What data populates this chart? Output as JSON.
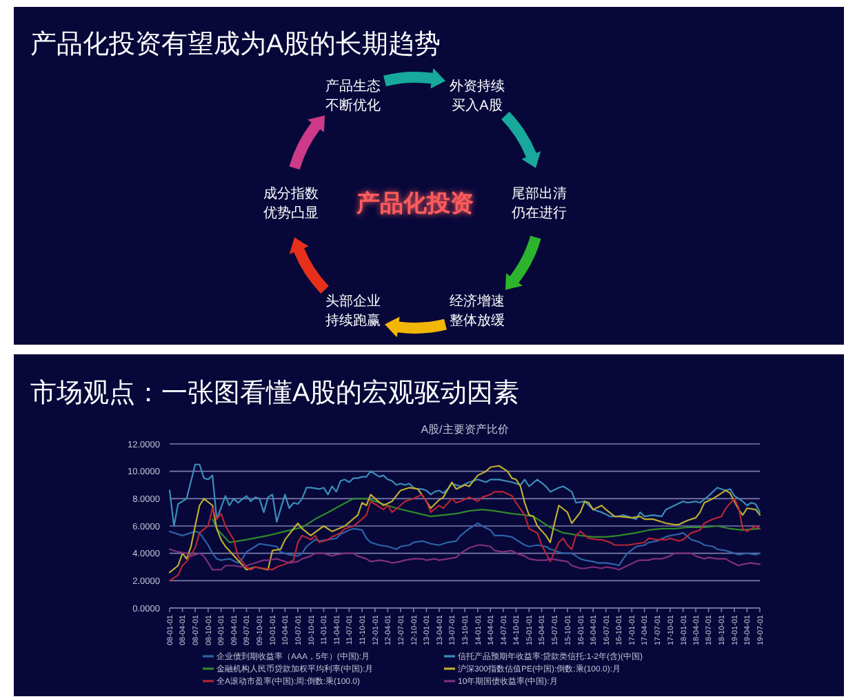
{
  "chart_data": [
    {
      "type": "other",
      "title": "产品化投资有望成为A股的长期趋势",
      "annotations": [
        "产品化投资",
        "产品生态不断优化",
        "外资持续买入A股",
        "尾部出清仍在进行",
        "经济增速整体放缓",
        "头部企业持续跑赢",
        "成分指数优势凸显"
      ]
    },
    {
      "type": "line",
      "title": "市场观点：一张图看懂A股的宏观驱动因素",
      "subtitle": "A股/主要资产比价",
      "ylim": [
        0,
        12
      ],
      "yticks": [
        {
          "value": 0,
          "label": "0.0000"
        },
        {
          "value": 2,
          "label": "2.0000"
        },
        {
          "value": 4,
          "label": "4.0000"
        },
        {
          "value": 6,
          "label": "6.0000"
        },
        {
          "value": 8,
          "label": "8.0000"
        },
        {
          "value": 10,
          "label": "10.0000"
        },
        {
          "value": 12,
          "label": "12.0000"
        }
      ],
      "xlim": [
        "2008-01-01",
        "2019-07-01"
      ],
      "xticks": [
        {
          "value": "2008-01-01",
          "label": "08-01-01"
        },
        {
          "value": "2008-04-01",
          "label": "08-04-01"
        },
        {
          "value": "2008-07-01",
          "label": "08-07-01"
        },
        {
          "value": "2008-10-01",
          "label": "08-10-01"
        },
        {
          "value": "2009-01-01",
          "label": "09-01-01"
        },
        {
          "value": "2009-04-01",
          "label": "09-04-01"
        },
        {
          "value": "2009-07-01",
          "label": "09-07-01"
        },
        {
          "value": "2009-10-01",
          "label": "09-10-01"
        },
        {
          "value": "2010-01-01",
          "label": "10-01-01"
        },
        {
          "value": "2010-04-01",
          "label": "10-04-01"
        },
        {
          "value": "2010-07-01",
          "label": "10-07-01"
        },
        {
          "value": "2010-10-01",
          "label": "10-10-01"
        },
        {
          "value": "2011-01-01",
          "label": "11-01-01"
        },
        {
          "value": "2011-04-01",
          "label": "11-04-01"
        },
        {
          "value": "2011-07-01",
          "label": "11-07-01"
        },
        {
          "value": "2011-10-01",
          "label": "11-10-01"
        },
        {
          "value": "2012-01-01",
          "label": "12-01-01"
        },
        {
          "value": "2012-04-01",
          "label": "12-04-01"
        },
        {
          "value": "2012-07-01",
          "label": "12-07-01"
        },
        {
          "value": "2012-10-01",
          "label": "12-10-01"
        },
        {
          "value": "2013-01-01",
          "label": "13-01-01"
        },
        {
          "value": "2013-04-01",
          "label": "13-04-01"
        },
        {
          "value": "2013-07-01",
          "label": "13-07-01"
        },
        {
          "value": "2013-10-01",
          "label": "13-10-01"
        },
        {
          "value": "2014-01-01",
          "label": "14-01-01"
        },
        {
          "value": "2014-04-01",
          "label": "14-04-01"
        },
        {
          "value": "2014-07-01",
          "label": "14-07-01"
        },
        {
          "value": "2014-10-01",
          "label": "14-10-01"
        },
        {
          "value": "2015-01-01",
          "label": "15-01-01"
        },
        {
          "value": "2015-04-01",
          "label": "15-04-01"
        },
        {
          "value": "2015-07-01",
          "label": "15-07-01"
        },
        {
          "value": "2015-10-01",
          "label": "15-10-01"
        },
        {
          "value": "2016-01-01",
          "label": "16-01-01"
        },
        {
          "value": "2016-04-01",
          "label": "16-04-01"
        },
        {
          "value": "2016-07-01",
          "label": "16-07-01"
        },
        {
          "value": "2016-10-01",
          "label": "16-10-01"
        },
        {
          "value": "2017-01-01",
          "label": "17-01-01"
        },
        {
          "value": "2017-04-01",
          "label": "17-04-01"
        },
        {
          "value": "2017-07-01",
          "label": "17-07-01"
        },
        {
          "value": "2017-10-01",
          "label": "17-10-01"
        },
        {
          "value": "2018-01-01",
          "label": "18-01-01"
        },
        {
          "value": "2018-04-01",
          "label": "18-04-01"
        },
        {
          "value": "2018-07-01",
          "label": "18-07-01"
        },
        {
          "value": "2018-10-01",
          "label": "18-10-01"
        },
        {
          "value": "2019-01-01",
          "label": "19-01-01"
        },
        {
          "value": "2019-04-01",
          "label": "19-04-01"
        },
        {
          "value": "2019-07-01",
          "label": "19-07-01"
        }
      ],
      "grid": "y",
      "legend": "bottom",
      "series": [
        {
          "name": "企业债到期收益率（AAA，5年）(中国):月",
          "color": "#2d64a8",
          "x": [
            "2008-01",
            "2008-03",
            "2008-04",
            "2008-06",
            "2008-07",
            "2008-08",
            "2008-10",
            "2008-11",
            "2008-12",
            "2009-01",
            "2009-03",
            "2009-05",
            "2009-06",
            "2009-07",
            "2009-09",
            "2009-10",
            "2009-12",
            "2010-02",
            "2010-03",
            "2010-05",
            "2010-07",
            "2010-08",
            "2010-09",
            "2010-11",
            "2010-12",
            "2011-02",
            "2011-04",
            "2011-05",
            "2011-07",
            "2011-08",
            "2011-10",
            "2011-11",
            "2011-12",
            "2012-02",
            "2012-04",
            "2012-06",
            "2012-07",
            "2012-09",
            "2012-10",
            "2012-12",
            "2013-02",
            "2013-04",
            "2013-06",
            "2013-08",
            "2013-09",
            "2013-11",
            "2014-01",
            "2014-02",
            "2014-04",
            "2014-05",
            "2014-07",
            "2014-09",
            "2014-10",
            "2014-12",
            "2015-01",
            "2015-03",
            "2015-05",
            "2015-06",
            "2015-08",
            "2015-09",
            "2015-11",
            "2016-01",
            "2016-02",
            "2016-04",
            "2016-05",
            "2016-07",
            "2016-09",
            "2016-10",
            "2016-11",
            "2016-12",
            "2017-02",
            "2017-04",
            "2017-05",
            "2017-07",
            "2017-09",
            "2017-10",
            "2017-12",
            "2018-01",
            "2018-03",
            "2018-05",
            "2018-06",
            "2018-08",
            "2018-09",
            "2018-11",
            "2019-01",
            "2019-02",
            "2019-04",
            "2019-06",
            "2019-07"
          ],
          "values": [
            5.6,
            5.4,
            5.3,
            5.5,
            5.6,
            5.5,
            4.6,
            4.0,
            3.6,
            3.5,
            3.6,
            3.3,
            3.6,
            4.1,
            4.5,
            4.7,
            4.6,
            4.5,
            4.1,
            3.9,
            3.8,
            4.0,
            4.5,
            5.0,
            4.9,
            5.0,
            5.1,
            5.4,
            5.7,
            5.8,
            5.7,
            5.1,
            4.8,
            4.6,
            4.5,
            4.3,
            4.5,
            4.6,
            4.8,
            4.9,
            4.7,
            4.6,
            4.8,
            4.9,
            5.3,
            5.8,
            6.2,
            6.0,
            5.7,
            5.3,
            5.3,
            5.2,
            5.0,
            4.6,
            4.5,
            4.6,
            4.5,
            4.3,
            4.1,
            4.0,
            4.0,
            3.6,
            3.5,
            3.4,
            3.3,
            3.3,
            3.2,
            3.1,
            3.6,
            4.0,
            4.5,
            4.6,
            4.8,
            4.9,
            5.2,
            5.3,
            5.4,
            5.5,
            5.0,
            4.8,
            4.6,
            4.5,
            4.3,
            4.2,
            4.0,
            3.9,
            4.0,
            3.9,
            4.0
          ]
        },
        {
          "name": "信托产品预期年收益率:贷款类信托:1-2年(含)(中国)",
          "color": "#3a8fb8",
          "x": [
            "2008-01",
            "2008-02",
            "2008-03",
            "2008-05",
            "2008-07",
            "2008-08",
            "2008-09",
            "2008-10",
            "2008-11",
            "2008-12",
            "2009-02",
            "2009-03",
            "2009-04",
            "2009-05",
            "2009-07",
            "2009-08",
            "2009-09",
            "2009-10",
            "2009-11",
            "2009-12",
            "2010-01",
            "2010-02",
            "2010-04",
            "2010-05",
            "2010-06",
            "2010-07",
            "2010-08",
            "2010-09",
            "2010-10",
            "2010-12",
            "2011-01",
            "2011-02",
            "2011-03",
            "2011-04",
            "2011-05",
            "2011-06",
            "2011-07",
            "2011-08",
            "2011-09",
            "2011-10",
            "2011-11",
            "2011-12",
            "2012-01",
            "2012-02",
            "2012-03",
            "2012-04",
            "2012-05",
            "2012-06",
            "2012-07",
            "2012-08",
            "2012-09",
            "2012-10",
            "2012-11",
            "2012-12",
            "2013-01",
            "2013-02",
            "2013-03",
            "2013-04",
            "2013-05",
            "2013-06",
            "2013-07",
            "2013-09",
            "2013-11",
            "2014-01",
            "2014-03",
            "2014-04",
            "2014-06",
            "2014-09",
            "2014-11",
            "2014-12",
            "2015-01",
            "2015-03",
            "2015-05",
            "2015-06",
            "2015-08",
            "2015-09",
            "2015-11",
            "2015-12",
            "2016-02",
            "2016-04",
            "2016-06",
            "2016-08",
            "2016-10",
            "2016-11",
            "2017-02",
            "2017-03",
            "2017-04",
            "2017-06",
            "2017-08",
            "2017-09",
            "2017-11",
            "2018-01",
            "2018-02",
            "2018-04",
            "2018-05",
            "2018-07",
            "2018-08",
            "2018-09",
            "2018-11",
            "2018-12",
            "2019-01",
            "2019-03",
            "2019-04",
            "2019-05",
            "2019-06",
            "2019-07"
          ],
          "values": [
            8.6,
            6.0,
            7.6,
            8.0,
            10.5,
            10.5,
            9.5,
            9.4,
            9.7,
            6.5,
            8.2,
            7.5,
            8.0,
            7.7,
            8.2,
            7.8,
            8.1,
            8.0,
            7.0,
            8.1,
            8.3,
            6.3,
            8.3,
            7.3,
            7.7,
            7.6,
            8.0,
            8.8,
            8.8,
            8.7,
            8.8,
            8.3,
            8.9,
            8.5,
            9.3,
            9.4,
            9.2,
            9.5,
            9.5,
            9.6,
            9.6,
            10.0,
            9.8,
            9.6,
            9.7,
            9.4,
            9.3,
            9.0,
            9.1,
            9.0,
            9.1,
            8.8,
            8.7,
            8.7,
            8.6,
            8.3,
            8.5,
            8.6,
            8.4,
            8.7,
            9.1,
            8.9,
            9.2,
            9.4,
            9.2,
            9.4,
            9.4,
            9.2,
            9.0,
            9.4,
            8.9,
            9.4,
            8.9,
            8.5,
            8.8,
            8.9,
            8.5,
            7.7,
            7.8,
            7.2,
            7.0,
            6.7,
            6.7,
            6.8,
            6.5,
            7.0,
            6.7,
            6.8,
            6.7,
            7.2,
            7.5,
            7.8,
            7.7,
            7.8,
            7.7,
            8.2,
            8.5,
            8.8,
            8.6,
            8.7,
            8.2,
            7.8,
            7.5,
            7.7,
            7.6,
            7.0
          ]
        },
        {
          "name": "金融机构人民币贷款加权平均利率(中国):月",
          "color": "#2f8a2a",
          "x": [
            "2008-11",
            "2008-12",
            "2009-03",
            "2009-07",
            "2009-12",
            "2010-04",
            "2010-08",
            "2010-11",
            "2011-02",
            "2011-05",
            "2011-08",
            "2011-11",
            "2012-02",
            "2012-06",
            "2012-10",
            "2013-02",
            "2013-05",
            "2013-08",
            "2013-11",
            "2014-02",
            "2014-05",
            "2014-09",
            "2014-12",
            "2015-02",
            "2015-04",
            "2015-06",
            "2015-09",
            "2016-01",
            "2016-04",
            "2016-07",
            "2016-10",
            "2017-02",
            "2017-05",
            "2017-08",
            "2017-11",
            "2018-02",
            "2018-06",
            "2018-09",
            "2018-12",
            "2019-03",
            "2019-07"
          ],
          "values": [
            6.5,
            5.8,
            4.8,
            5.0,
            5.3,
            5.6,
            5.9,
            6.5,
            7.0,
            7.5,
            8.0,
            8.0,
            7.7,
            7.3,
            7.0,
            6.7,
            6.8,
            6.9,
            7.1,
            7.2,
            7.1,
            6.9,
            6.8,
            6.7,
            6.3,
            5.9,
            5.5,
            5.3,
            5.2,
            5.2,
            5.3,
            5.5,
            5.7,
            5.8,
            5.8,
            5.9,
            5.9,
            6.0,
            5.8,
            5.7,
            5.8
          ]
        },
        {
          "name": "沪深300指数估值PE(中国):倒数:乘(100.0):月",
          "color": "#bfae30",
          "x": [
            "2008-01",
            "2008-03",
            "2008-04",
            "2008-05",
            "2008-06",
            "2008-07",
            "2008-08",
            "2008-09",
            "2008-11",
            "2008-12",
            "2009-01",
            "2009-02",
            "2009-05",
            "2009-07",
            "2009-09",
            "2009-12",
            "2010-01",
            "2010-03",
            "2010-04",
            "2010-07",
            "2010-08",
            "2010-10",
            "2011-01",
            "2011-03",
            "2011-06",
            "2011-09",
            "2011-10",
            "2011-11",
            "2011-12",
            "2012-01",
            "2012-03",
            "2012-05",
            "2012-07",
            "2012-09",
            "2012-11",
            "2013-01",
            "2013-02",
            "2013-04",
            "2013-05",
            "2013-07",
            "2013-08",
            "2013-10",
            "2013-11",
            "2014-01",
            "2014-03",
            "2014-04",
            "2014-06",
            "2014-08",
            "2014-09",
            "2014-10",
            "2014-11",
            "2014-12",
            "2015-01",
            "2015-02",
            "2015-03",
            "2015-05",
            "2015-06",
            "2015-07",
            "2015-08",
            "2015-10",
            "2015-11",
            "2016-01",
            "2016-02",
            "2016-03",
            "2016-04",
            "2016-06",
            "2016-07",
            "2016-09",
            "2016-10",
            "2017-01",
            "2017-03",
            "2017-04",
            "2017-06",
            "2017-08",
            "2017-09",
            "2017-11",
            "2017-12",
            "2018-02",
            "2018-04",
            "2018-05",
            "2018-06",
            "2018-08",
            "2018-09",
            "2018-11",
            "2018-12",
            "2019-01",
            "2019-02",
            "2019-03",
            "2019-04",
            "2019-06",
            "2019-07"
          ],
          "values": [
            2.6,
            3.1,
            4.0,
            3.6,
            4.5,
            6.0,
            7.5,
            8.0,
            7.5,
            5.8,
            5.0,
            4.5,
            3.5,
            2.8,
            3.0,
            2.8,
            4.2,
            4.3,
            5.0,
            6.2,
            5.8,
            5.3,
            6.0,
            5.6,
            6.0,
            6.8,
            7.7,
            7.5,
            8.3,
            8.0,
            7.5,
            7.8,
            8.6,
            8.8,
            8.7,
            7.8,
            7.3,
            7.9,
            8.1,
            9.2,
            8.7,
            9.0,
            8.9,
            9.7,
            10.0,
            10.3,
            10.4,
            10.0,
            9.5,
            9.4,
            8.9,
            7.7,
            6.8,
            6.7,
            6.0,
            5.3,
            4.8,
            6.2,
            7.5,
            7.0,
            6.2,
            7.0,
            7.8,
            7.7,
            7.2,
            7.5,
            7.2,
            6.7,
            6.7,
            6.6,
            6.7,
            6.5,
            6.5,
            6.3,
            6.2,
            6.1,
            6.1,
            6.4,
            6.6,
            7.0,
            7.7,
            8.0,
            8.2,
            8.6,
            8.4,
            7.8,
            7.2,
            6.8,
            7.3,
            7.2,
            6.8
          ]
        },
        {
          "name": "全A滚动市盈率(中国):周:倒数:乘(100.0)",
          "color": "#b82535",
          "x": [
            "2008-01",
            "2008-03",
            "2008-04",
            "2008-05",
            "2008-07",
            "2008-08",
            "2008-10",
            "2008-11",
            "2008-12",
            "2009-01",
            "2009-02",
            "2009-04",
            "2009-05",
            "2009-07",
            "2009-08",
            "2009-09",
            "2009-11",
            "2010-01",
            "2010-02",
            "2010-04",
            "2010-06",
            "2010-07",
            "2010-08",
            "2010-10",
            "2010-11",
            "2010-12",
            "2011-02",
            "2011-03",
            "2011-05",
            "2011-06",
            "2011-08",
            "2011-10",
            "2011-11",
            "2011-12",
            "2012-01",
            "2012-03",
            "2012-04",
            "2012-05",
            "2012-07",
            "2012-08",
            "2012-10",
            "2012-12",
            "2013-01",
            "2013-02",
            "2013-04",
            "2013-05",
            "2013-07",
            "2013-08",
            "2013-09",
            "2013-11",
            "2014-01",
            "2014-02",
            "2014-04",
            "2014-05",
            "2014-07",
            "2014-09",
            "2014-10",
            "2014-12",
            "2015-01",
            "2015-03",
            "2015-04",
            "2015-06",
            "2015-07",
            "2015-08",
            "2015-09",
            "2015-10",
            "2015-11",
            "2015-12",
            "2016-01",
            "2016-03",
            "2016-05",
            "2016-06",
            "2016-08",
            "2016-09",
            "2016-12",
            "2017-02",
            "2017-04",
            "2017-05",
            "2017-07",
            "2017-09",
            "2017-10",
            "2017-12",
            "2018-01",
            "2018-03",
            "2018-05",
            "2018-06",
            "2018-08",
            "2018-10",
            "2018-11",
            "2019-01",
            "2019-02",
            "2019-03",
            "2019-04",
            "2019-06",
            "2019-07"
          ],
          "values": [
            2.0,
            2.4,
            3.1,
            3.4,
            4.4,
            5.5,
            6.0,
            7.3,
            6.5,
            6.9,
            6.0,
            5.0,
            3.8,
            3.0,
            2.8,
            3.0,
            2.9,
            2.8,
            3.0,
            3.2,
            3.5,
            4.8,
            5.3,
            5.0,
            5.3,
            4.8,
            5.0,
            5.2,
            5.5,
            5.8,
            6.0,
            6.5,
            6.8,
            7.8,
            7.6,
            7.2,
            7.5,
            7.0,
            7.5,
            7.8,
            8.0,
            8.3,
            7.8,
            7.0,
            7.5,
            7.3,
            8.0,
            7.7,
            7.8,
            8.1,
            7.8,
            8.1,
            8.3,
            8.5,
            8.5,
            8.2,
            7.7,
            6.8,
            5.8,
            5.5,
            4.6,
            3.4,
            4.1,
            4.8,
            5.1,
            4.6,
            4.3,
            5.3,
            5.6,
            5.1,
            5.0,
            5.0,
            4.8,
            4.6,
            4.6,
            4.7,
            4.8,
            5.1,
            5.0,
            5.0,
            5.1,
            4.9,
            5.0,
            5.5,
            5.7,
            6.2,
            6.5,
            6.7,
            7.3,
            8.0,
            7.3,
            5.8,
            5.6,
            6.0,
            5.8
          ]
        },
        {
          "name": "10年期国债收益率(中国):月",
          "color": "#82307c",
          "x": [
            "2008-01",
            "2008-03",
            "2008-05",
            "2008-06",
            "2008-08",
            "2008-09",
            "2008-11",
            "2009-01",
            "2009-02",
            "2009-04",
            "2009-06",
            "2009-07",
            "2009-09",
            "2009-11",
            "2009-12",
            "2010-02",
            "2010-03",
            "2010-05",
            "2010-07",
            "2010-08",
            "2010-10",
            "2010-11",
            "2011-01",
            "2011-03",
            "2011-04",
            "2011-06",
            "2011-08",
            "2011-09",
            "2011-11",
            "2011-12",
            "2012-02",
            "2012-04",
            "2012-05",
            "2012-07",
            "2012-08",
            "2012-10",
            "2012-12",
            "2013-01",
            "2013-03",
            "2013-04",
            "2013-06",
            "2013-08",
            "2013-09",
            "2013-11",
            "2014-01",
            "2014-02",
            "2014-04",
            "2014-05",
            "2014-07",
            "2014-09",
            "2014-10",
            "2014-12",
            "2015-01",
            "2015-03",
            "2015-05",
            "2015-06",
            "2015-08",
            "2015-10",
            "2015-11",
            "2016-01",
            "2016-02",
            "2016-04",
            "2016-06",
            "2016-07",
            "2016-09",
            "2016-10",
            "2016-12",
            "2017-02",
            "2017-03",
            "2017-05",
            "2017-06",
            "2017-08",
            "2017-10",
            "2017-11",
            "2018-01",
            "2018-03",
            "2018-04",
            "2018-06",
            "2018-07",
            "2018-09",
            "2018-11",
            "2018-12",
            "2019-02",
            "2019-03",
            "2019-05",
            "2019-07"
          ],
          "values": [
            4.3,
            4.1,
            4.0,
            3.8,
            4.0,
            3.8,
            2.8,
            2.8,
            3.1,
            3.1,
            3.0,
            3.1,
            3.3,
            3.5,
            3.5,
            3.6,
            3.5,
            3.3,
            3.4,
            3.6,
            3.8,
            4.0,
            4.0,
            3.8,
            3.9,
            4.0,
            4.0,
            3.8,
            3.6,
            3.4,
            3.5,
            3.4,
            3.3,
            3.4,
            3.5,
            3.6,
            3.6,
            3.5,
            3.6,
            3.5,
            3.6,
            3.7,
            4.0,
            4.4,
            4.6,
            4.6,
            4.5,
            4.2,
            4.1,
            4.2,
            4.0,
            3.8,
            3.6,
            3.5,
            3.5,
            3.6,
            3.5,
            3.4,
            3.1,
            2.9,
            2.9,
            3.0,
            2.9,
            3.0,
            2.9,
            2.8,
            3.1,
            3.4,
            3.5,
            3.5,
            3.6,
            3.6,
            3.8,
            4.0,
            4.0,
            4.0,
            3.8,
            3.6,
            3.7,
            3.6,
            3.6,
            3.4,
            3.1,
            3.2,
            3.3,
            3.2
          ]
        }
      ]
    }
  ]
}
